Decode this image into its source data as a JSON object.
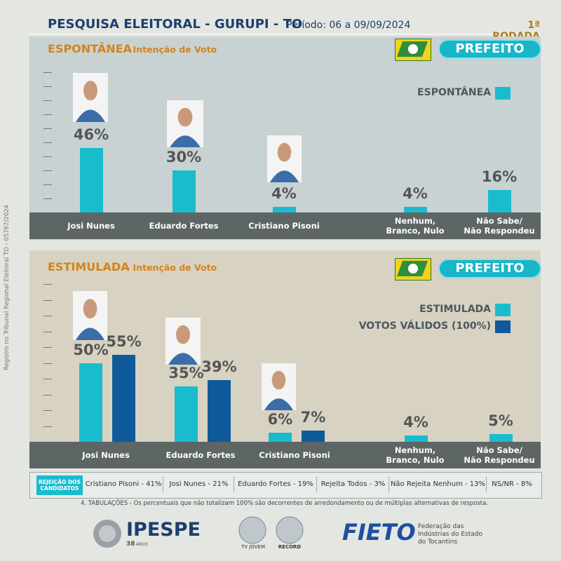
{
  "header": {
    "title": "PESQUISA ELEITORAL - GURUPI - TO",
    "period": "Período: 06 a 09/09/2024",
    "round": "1ª RODADA",
    "registry": "Registro no Tribunal Regional Eleitoral TO - 05767/2024"
  },
  "chart_data": [
    {
      "type": "bar",
      "title": "ESPONTÂNEA",
      "subtitle": "- Intenção de Voto",
      "badge": "PREFEITO",
      "categories": [
        "Josi Nunes",
        "Eduardo Fortes",
        "Cristiano Pisoni",
        "Nenhum,\nBranco, Nulo",
        "Não Sabe/\nNão Respondeu"
      ],
      "ylim": [
        0,
        100
      ],
      "series": [
        {
          "name": "ESPONTÂNEA",
          "color": "#19bccd",
          "values": [
            46,
            30,
            4,
            4,
            16
          ],
          "value_labels": [
            "46%",
            "30%",
            "4%",
            "4%",
            "16%"
          ]
        }
      ]
    },
    {
      "type": "bar",
      "title": "ESTIMULADA",
      "subtitle": "- Intenção de Voto",
      "badge": "PREFEITO",
      "categories": [
        "Josi Nunes",
        "Eduardo Fortes",
        "Cristiano Pisoni",
        "Nenhum,\nBranco, Nulo",
        "Não Sabe/\nNão Respondeu"
      ],
      "ylim": [
        0,
        100
      ],
      "series": [
        {
          "name": "ESTIMULADA",
          "color": "#19bccd",
          "values": [
            50,
            35,
            6,
            4,
            5
          ],
          "value_labels": [
            "50%",
            "35%",
            "6%",
            "4%",
            "5%"
          ]
        },
        {
          "name": "VOTOS VÁLIDOS (100%)",
          "color": "#0e5a9a",
          "values": [
            55,
            39,
            7,
            null,
            null
          ],
          "value_labels": [
            "55%",
            "39%",
            "7%",
            null,
            null
          ]
        }
      ]
    }
  ],
  "rejection": {
    "label": "REJEIÇÃO DOS CANDIDATOS",
    "items": [
      "Cristiano Pisoni  -  41%",
      "Josi Nunes  -  21%",
      "Eduardo Fortes  -  19%",
      "Rejeita Todos  -  3%",
      "Não Rejeita Nenhum  -  13%",
      "NS/NR  -  8%"
    ]
  },
  "footnote": "4. TABULAÇÕES - Os percentuais que não totalizam 100% são decorrentes de arredondamento ou de múltiplas alternativas de resposta.",
  "logos": {
    "ipespe": "IPESPE",
    "years": "38",
    "years_word": "ANOS",
    "tv1": "TV JOVEM",
    "tv2": "RECORD",
    "fieto": "FIETO",
    "fieto_text": "Federação das\nIndústrias do Estado\ndo Tocantins"
  }
}
